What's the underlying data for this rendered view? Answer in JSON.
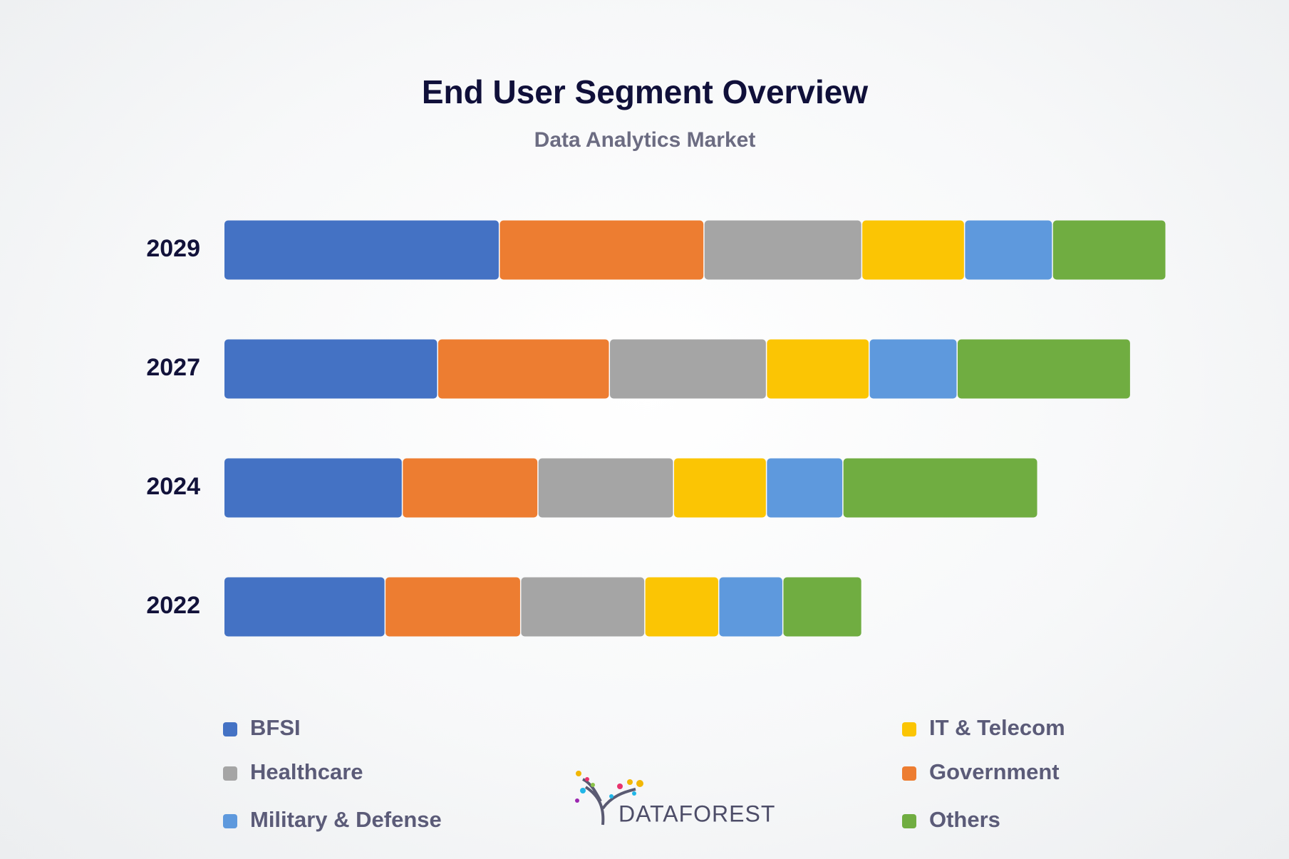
{
  "chart_data": {
    "type": "stacked-bar-horizontal",
    "title": "End User Segment Overview",
    "subtitle": "Data Analytics Market",
    "categories": [
      "2029",
      "2027",
      "2024",
      "2022"
    ],
    "series": [
      {
        "name": "BFSI",
        "color": "#4472c4",
        "values": [
          335,
          260,
          217,
          196
        ]
      },
      {
        "name": "Government",
        "color": "#ed7d31",
        "values": [
          249,
          209,
          165,
          165
        ]
      },
      {
        "name": "Healthcare",
        "color": "#a5a5a5",
        "values": [
          192,
          191,
          165,
          151
        ]
      },
      {
        "name": "IT & Telecom",
        "color": "#fbc504",
        "values": [
          125,
          125,
          113,
          90
        ]
      },
      {
        "name": "Military & Defense",
        "color": "#5e99dd",
        "values": [
          107,
          107,
          93,
          78
        ]
      },
      {
        "name": "Others",
        "color": "#70ad41",
        "values": [
          138,
          211,
          237,
          96
        ]
      }
    ]
  },
  "logo": "DATAFOREST"
}
